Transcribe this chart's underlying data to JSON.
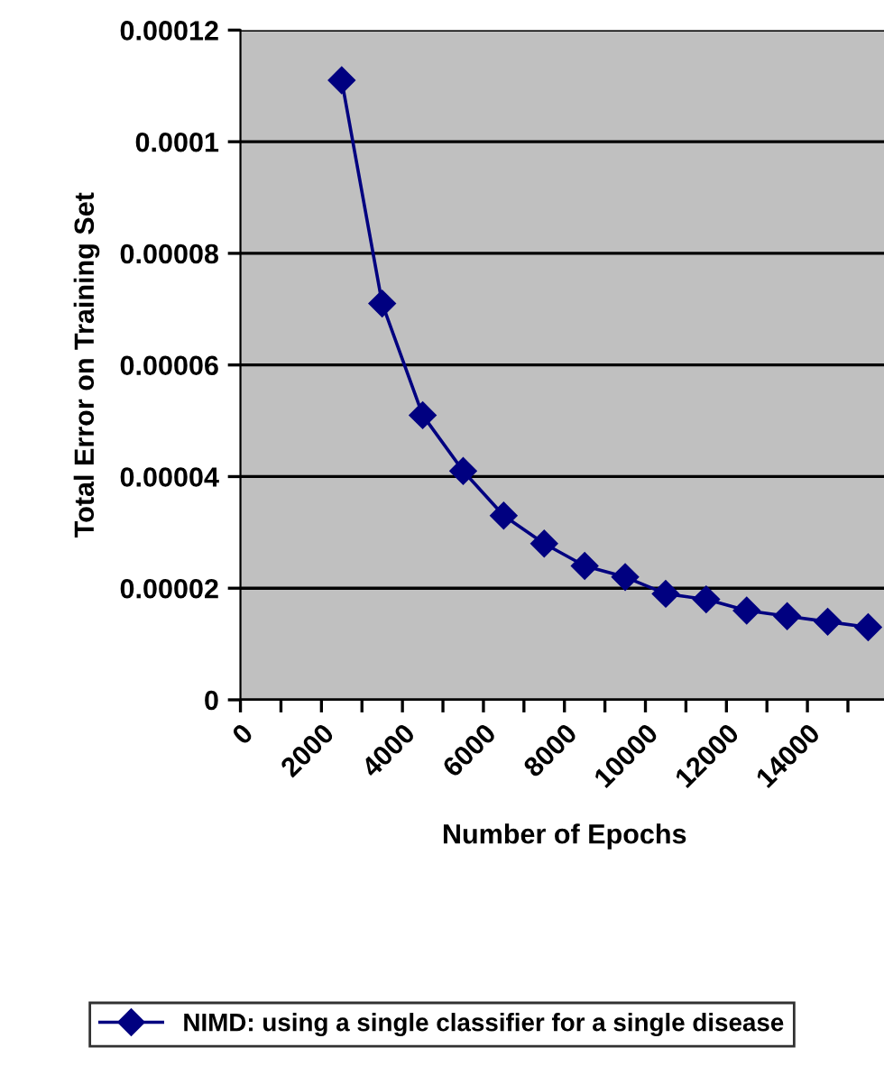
{
  "chart_data": {
    "type": "line",
    "xlabel": "Number of Epochs",
    "ylabel": "Total Error on Training Set",
    "x": [
      2500,
      3500,
      4500,
      5500,
      6500,
      7500,
      8500,
      9500,
      10500,
      11500,
      12500,
      13500,
      14500,
      15500
    ],
    "series": [
      {
        "name": "NIMD: using a single classifier for a single disease",
        "color": "#000080",
        "values": [
          0.000111,
          7.1e-05,
          5.1e-05,
          4.1e-05,
          3.3e-05,
          2.8e-05,
          2.4e-05,
          2.2e-05,
          1.9e-05,
          1.8e-05,
          1.6e-05,
          1.5e-05,
          1.4e-05,
          1.3e-05
        ]
      }
    ],
    "xlim": [
      0,
      16000
    ],
    "xticks": [
      0,
      {
        "value": 1000,
        "label": null
      },
      2000,
      {
        "value": 3000,
        "label": null
      },
      4000,
      {
        "value": 5000,
        "label": null
      },
      6000,
      {
        "value": 7000,
        "label": null
      },
      8000,
      {
        "value": 9000,
        "label": null
      },
      10000,
      {
        "value": 11000,
        "label": null
      },
      12000,
      {
        "value": 13000,
        "label": null
      },
      14000,
      {
        "value": 15000,
        "label": null
      }
    ],
    "ylim": [
      0,
      0.00012
    ],
    "yticks": [
      0,
      {
        "value": 2e-05,
        "label": "0.00002"
      },
      {
        "value": 4e-05,
        "label": "0.00004"
      },
      {
        "value": 6e-05,
        "label": "0.00006"
      },
      {
        "value": 8e-05,
        "label": "0.00008"
      },
      0.0001,
      0.00012
    ],
    "grid": "y",
    "legend": "bottom",
    "marker": "diamond",
    "line_style": "solid"
  }
}
